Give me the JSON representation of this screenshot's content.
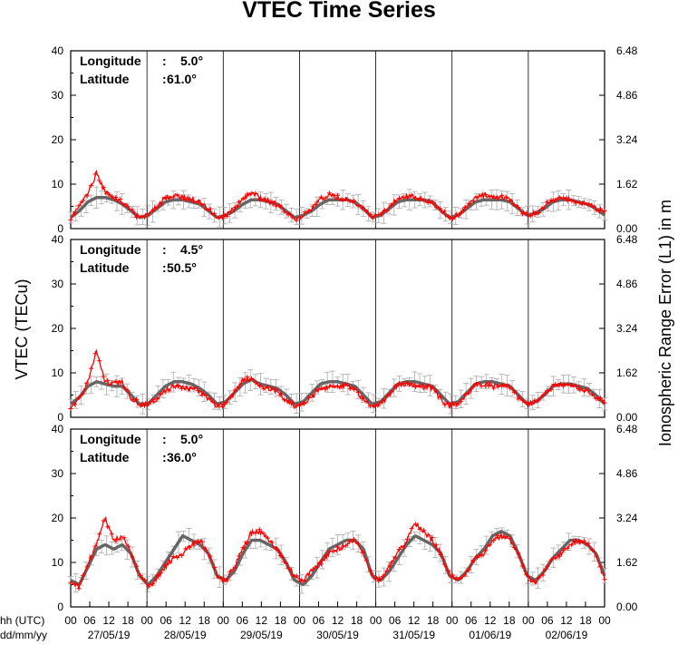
{
  "chart_data": {
    "type": "line",
    "title": "VTEC Time Series",
    "ylabel_left": "VTEC (TECu)",
    "ylabel_right": "Ionospheric Range Error (L1) in m",
    "xlabel_hour": "hh (UTC)",
    "xlabel_date": "dd/mm/yy",
    "hour_ticks": [
      "00",
      "06",
      "12",
      "18"
    ],
    "final_hour_tick": "00",
    "dates": [
      "27/05/19",
      "28/05/19",
      "29/05/19",
      "30/05/19",
      "31/05/19",
      "01/06/19",
      "02/06/19"
    ],
    "left_ticks": [
      "0",
      "10",
      "20",
      "30",
      "40"
    ],
    "right_ticks": [
      "0.00",
      "1.62",
      "3.24",
      "4.86",
      "6.48"
    ],
    "ylim": [
      0,
      40
    ],
    "colors": {
      "series_observed": "#ff0000",
      "series_reference": "#666666",
      "errorbars": "#aaaaaa"
    },
    "panels": [
      {
        "longitude_label": "Longitude",
        "longitude_value": "5.0°",
        "latitude_label": "Latitude",
        "latitude_value": "61.0°",
        "reference_profile": [
          2.5,
          4,
          6,
          7,
          7,
          6.5,
          5.5,
          4,
          2.5,
          3,
          4.5,
          6,
          6.5,
          6.5,
          6,
          5.5,
          4,
          2.5,
          3,
          4,
          5.5,
          6.5,
          6.5,
          6,
          5.5,
          4,
          2.5,
          3,
          4,
          5.5,
          6.5,
          6.5,
          6.5,
          6,
          4.5,
          2.5,
          3,
          4.5,
          6,
          6.5,
          6.5,
          6.5,
          6,
          4,
          2.5,
          3,
          4.5,
          6,
          6.5,
          6.5,
          6.5,
          6,
          4.5,
          3,
          3.5,
          4.5,
          6,
          6.5,
          6.5,
          6,
          5.5,
          4.5,
          3
        ],
        "observed_profile": [
          2.5,
          5,
          8,
          12.5,
          8,
          7,
          6,
          4,
          2.5,
          3,
          5,
          7,
          7.5,
          7,
          6.5,
          6,
          4.5,
          2.5,
          3,
          4.5,
          6.5,
          8,
          7,
          6,
          5.5,
          4,
          2,
          3,
          4.5,
          6.5,
          7.5,
          7,
          6.5,
          6,
          4.5,
          2.5,
          3,
          5,
          7,
          7.5,
          7,
          6.5,
          6,
          4,
          2.5,
          3,
          5,
          7,
          7.5,
          7,
          7,
          6.5,
          4.5,
          3,
          3.5,
          5,
          6.5,
          7,
          6.5,
          6,
          5.5,
          4.5,
          3.5
        ]
      },
      {
        "longitude_label": "Longitude",
        "longitude_value": "4.5°",
        "latitude_label": "Latitude",
        "latitude_value": "50.5°",
        "reference_profile": [
          3,
          4.5,
          7,
          8,
          7.5,
          7,
          7,
          5,
          3,
          3,
          5,
          7,
          8,
          8,
          7.5,
          6.5,
          5,
          3,
          3.5,
          5.5,
          7.5,
          8.5,
          7.5,
          7,
          6.5,
          5,
          3,
          3.5,
          5.5,
          7.5,
          8,
          8,
          7.5,
          7,
          5,
          3,
          3.5,
          5.5,
          7.5,
          8,
          8,
          7.5,
          7,
          5,
          3,
          3.5,
          5.5,
          7.5,
          8,
          8,
          7.5,
          7,
          5,
          3,
          3.5,
          5,
          7,
          7.5,
          7.5,
          7,
          6.5,
          5,
          3
        ],
        "observed_profile": [
          2.5,
          4,
          8,
          15,
          8,
          7.5,
          8,
          4.5,
          3,
          3,
          4,
          6,
          7,
          6.5,
          6.5,
          6,
          4,
          2.5,
          3,
          5.5,
          8.5,
          8.5,
          7,
          6.5,
          6,
          4,
          2.5,
          3,
          4.5,
          6.5,
          7,
          7,
          7,
          6.5,
          4,
          2.5,
          3,
          5,
          7.5,
          7.5,
          7,
          7,
          6.5,
          4,
          2.5,
          3,
          5,
          7.5,
          7.5,
          7,
          7.5,
          7,
          4.5,
          3,
          3.5,
          5,
          7,
          7.5,
          7,
          6.5,
          6,
          4.5,
          3.5
        ]
      },
      {
        "longitude_label": "Longitude",
        "longitude_value": "5.0°",
        "latitude_label": "Latitude",
        "latitude_value": "36.0°",
        "reference_profile": [
          6,
          5,
          9,
          13,
          14,
          13,
          14,
          12,
          7,
          5,
          7,
          10,
          13,
          16,
          15,
          14,
          12,
          7,
          6,
          8,
          12,
          15,
          15,
          14,
          13,
          10,
          6,
          5,
          7,
          10,
          13,
          14,
          15,
          15,
          13,
          7,
          6,
          8,
          11,
          14,
          16,
          15,
          14,
          12,
          7,
          6,
          8,
          11,
          13,
          16,
          17,
          16,
          12,
          7,
          6,
          8,
          11,
          13,
          15,
          15,
          14,
          12,
          7
        ],
        "observed_profile": [
          6,
          4.5,
          10,
          14,
          20,
          15,
          16,
          12,
          7,
          4.5,
          6.5,
          9,
          11,
          12,
          14,
          15,
          12,
          7,
          6,
          9,
          13,
          17,
          17,
          15,
          13,
          10,
          7,
          6,
          8,
          10,
          12,
          13,
          14,
          15,
          12,
          7,
          6,
          9,
          12,
          15,
          19,
          17,
          15,
          12,
          7,
          6,
          8,
          11,
          12,
          15,
          16,
          15,
          12,
          7,
          5.5,
          8,
          11,
          12,
          14,
          15,
          14,
          12,
          6
        ]
      }
    ]
  }
}
